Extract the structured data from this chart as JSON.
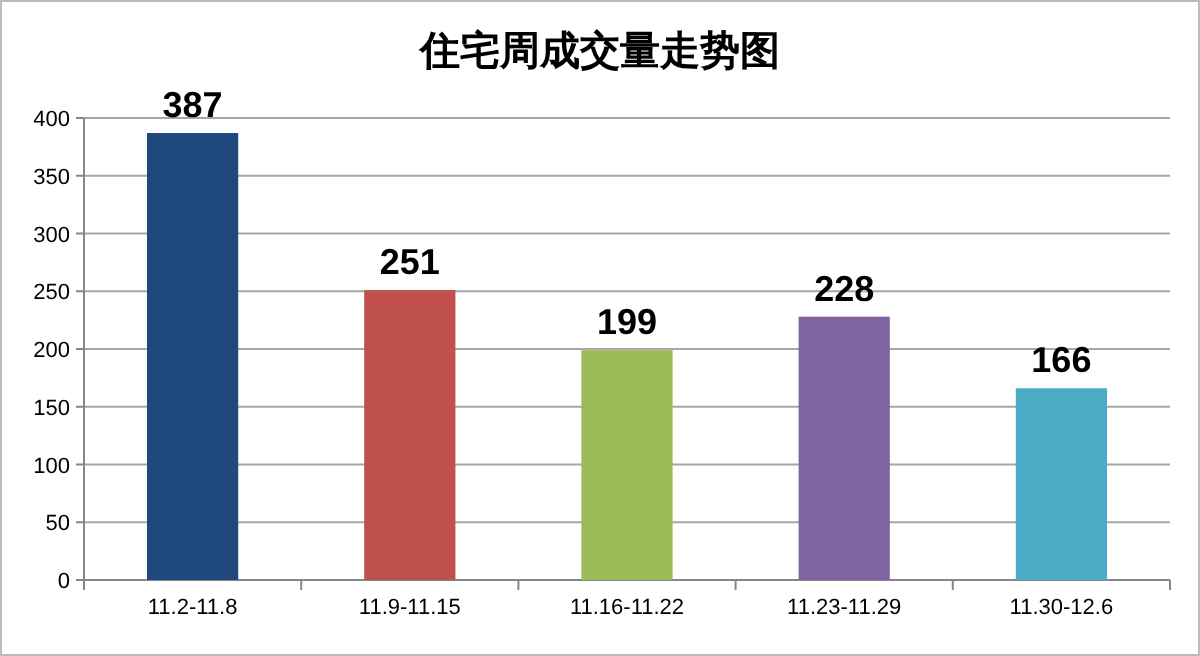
{
  "chart_data": {
    "type": "bar",
    "title": "住宅周成交量走势图",
    "categories": [
      "11.2-11.8",
      "11.9-11.15",
      "11.16-11.22",
      "11.23-11.29",
      "11.30-12.6"
    ],
    "values": [
      387,
      251,
      199,
      228,
      166
    ],
    "colors": [
      "#1f497d",
      "#c0504d",
      "#9bbb59",
      "#8064a2",
      "#4bacc6"
    ],
    "ylim": [
      0,
      400
    ],
    "yticks": [
      0,
      50,
      100,
      150,
      200,
      250,
      300,
      350,
      400
    ],
    "grid": "y",
    "data_labels": true
  }
}
